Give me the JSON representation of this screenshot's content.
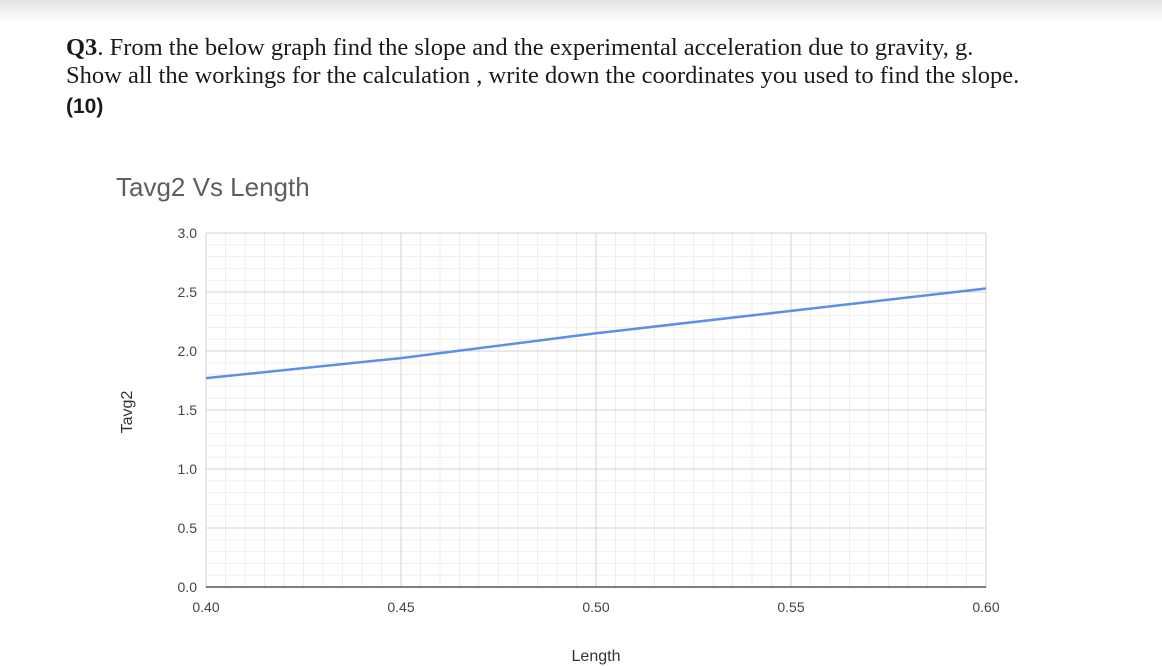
{
  "question": {
    "number": "Q3",
    "line1": ". From the below graph find the slope and the experimental acceleration due to gravity, g.",
    "line2": "Show all the workings for the calculation , write down the coordinates you used to find the slope.",
    "marks": "(10)"
  },
  "chart_data": {
    "type": "line",
    "title": "Tavg2 Vs Length",
    "xlabel": "Length",
    "ylabel": "Tavg2",
    "xlim": [
      0.4,
      0.6
    ],
    "ylim": [
      0.0,
      3.0
    ],
    "x_ticks": [
      "0.40",
      "0.45",
      "0.50",
      "0.55",
      "0.60"
    ],
    "y_ticks": [
      "0.0",
      "0.5",
      "1.0",
      "1.5",
      "2.0",
      "2.5",
      "3.0"
    ],
    "grid": true,
    "series": [
      {
        "color": "#5b8fe8",
        "x": [
          0.4,
          0.45,
          0.5,
          0.55,
          0.6
        ],
        "y": [
          1.77,
          1.94,
          2.15,
          2.34,
          2.53
        ]
      }
    ]
  }
}
